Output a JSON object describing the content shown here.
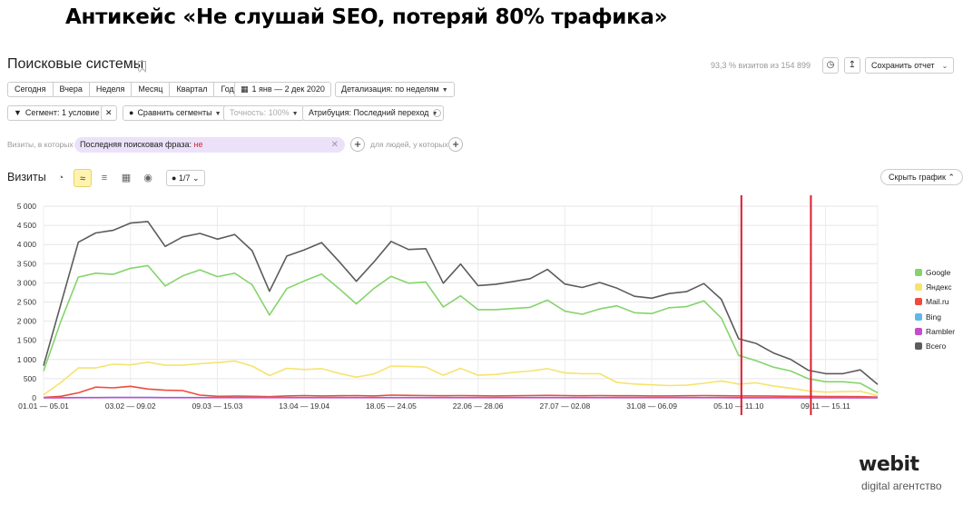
{
  "slide_title": "Антикейс «Не слушай SEO, потеряй 80% трафика»",
  "header": {
    "report_title": "Поисковые системы",
    "visits_share": "93,3 % визитов из 154 899",
    "save_label": "Сохранить отчет"
  },
  "periods": [
    "Сегодня",
    "Вчера",
    "Неделя",
    "Месяц",
    "Квартал",
    "Год"
  ],
  "toolbar": {
    "date_range": "1 янв — 2 дек 2020",
    "detail": "Детализация: по неделям",
    "segment": "Сегмент: 1 условие",
    "compare": "Сравнить сегменты",
    "accuracy": "Точность: 100%",
    "attribution": "Атрибуция: Последний переход"
  },
  "filter": {
    "prefix": "Визиты, в которых",
    "chip_text": "Последняя поисковая фраза:",
    "chip_value": "не",
    "people_label": "для людей, у которых"
  },
  "chart_header": {
    "title": "Визиты",
    "metrics": "1/7",
    "hide_label": "Скрыть график"
  },
  "colors": {
    "google": "#85d46b",
    "yandex": "#f6e36e",
    "mailru": "#ef4b3c",
    "bing": "#5fb8e6",
    "rambler": "#c54dc9",
    "total": "#5c5c5c",
    "marker": "#d91e2e"
  },
  "chart_data": {
    "type": "line",
    "title": "",
    "xlabel": "",
    "ylabel": "",
    "ylim": [
      0,
      5000
    ],
    "yticks": [
      "0",
      "500",
      "1 000",
      "1 500",
      "2 000",
      "2 500",
      "3 000",
      "3 500",
      "4 000",
      "4 500",
      "5 000"
    ],
    "grid": true,
    "legend_position": "right",
    "x_tick_labels": [
      "01.01 — 05.01",
      "03.02 — 09.02",
      "09.03 — 15.03",
      "13.04 — 19.04",
      "18.05 — 24.05",
      "22.06 — 28.06",
      "27.07 — 02.08",
      "31.08 — 06.09",
      "05.10 — 11.10",
      "09.11 — 15.11"
    ],
    "x_tick_week_index": [
      0,
      5,
      10,
      15,
      20,
      25,
      30,
      35,
      40,
      45
    ],
    "week_count": 49,
    "markers_week_index": [
      40,
      44
    ],
    "series": [
      {
        "name": "Google",
        "color_key": "google",
        "values": [
          700,
          2000,
          3150,
          3250,
          3220,
          3380,
          3450,
          2920,
          3180,
          3340,
          3160,
          3250,
          2950,
          2160,
          2850,
          3050,
          3230,
          2850,
          2450,
          2850,
          3170,
          2990,
          3020,
          2370,
          2660,
          2300,
          2300,
          2330,
          2360,
          2550,
          2260,
          2180,
          2320,
          2400,
          2220,
          2200,
          2350,
          2380,
          2530,
          2080,
          1110,
          970,
          800,
          700,
          500,
          420,
          420,
          380,
          130
        ]
      },
      {
        "name": "Яндекс",
        "color_key": "yandex",
        "values": [
          80,
          400,
          780,
          780,
          880,
          860,
          930,
          850,
          850,
          890,
          920,
          960,
          830,
          580,
          770,
          740,
          760,
          640,
          540,
          620,
          830,
          820,
          800,
          590,
          770,
          590,
          610,
          660,
          700,
          760,
          650,
          630,
          630,
          400,
          360,
          340,
          320,
          330,
          380,
          440,
          360,
          390,
          310,
          250,
          180,
          150,
          160,
          170,
          60
        ]
      },
      {
        "name": "Mail.ru",
        "color_key": "mailru",
        "values": [
          10,
          40,
          130,
          280,
          260,
          300,
          230,
          200,
          190,
          70,
          40,
          45,
          40,
          30,
          50,
          60,
          50,
          55,
          60,
          50,
          70,
          65,
          60,
          55,
          60,
          55,
          50,
          55,
          60,
          65,
          60,
          55,
          60,
          55,
          55,
          50,
          50,
          55,
          60,
          55,
          50,
          50,
          45,
          40,
          40,
          35,
          35,
          30,
          20
        ]
      },
      {
        "name": "Bing",
        "color_key": "bing",
        "values": [
          2,
          5,
          8,
          8,
          9,
          9,
          9,
          8,
          8,
          8,
          8,
          9,
          8,
          6,
          8,
          8,
          8,
          7,
          6,
          7,
          8,
          8,
          8,
          7,
          8,
          7,
          7,
          7,
          8,
          8,
          7,
          7,
          7,
          7,
          7,
          7,
          7,
          7,
          7,
          6,
          5,
          5,
          4,
          4,
          3,
          3,
          3,
          3,
          2
        ]
      },
      {
        "name": "Rambler",
        "color_key": "rambler",
        "values": [
          1,
          3,
          5,
          5,
          6,
          6,
          6,
          5,
          5,
          5,
          5,
          5,
          5,
          4,
          5,
          5,
          5,
          4,
          4,
          4,
          5,
          5,
          5,
          4,
          5,
          4,
          4,
          4,
          5,
          5,
          4,
          4,
          4,
          4,
          4,
          4,
          4,
          4,
          4,
          4,
          3,
          3,
          3,
          2,
          2,
          2,
          2,
          2,
          1
        ]
      },
      {
        "name": "Всего",
        "color_key": "total",
        "values": [
          840,
          2450,
          4060,
          4300,
          4370,
          4560,
          4600,
          3950,
          4200,
          4290,
          4140,
          4260,
          3840,
          2780,
          3700,
          3860,
          4050,
          3560,
          3040,
          3540,
          4080,
          3870,
          3890,
          2990,
          3490,
          2930,
          2960,
          3030,
          3110,
          3350,
          2970,
          2880,
          3010,
          2860,
          2650,
          2600,
          2720,
          2770,
          2980,
          2570,
          1540,
          1420,
          1170,
          1000,
          720,
          630,
          630,
          730,
          350
        ]
      }
    ]
  },
  "brand": {
    "name": "webit",
    "tagline": "digital агентство"
  }
}
